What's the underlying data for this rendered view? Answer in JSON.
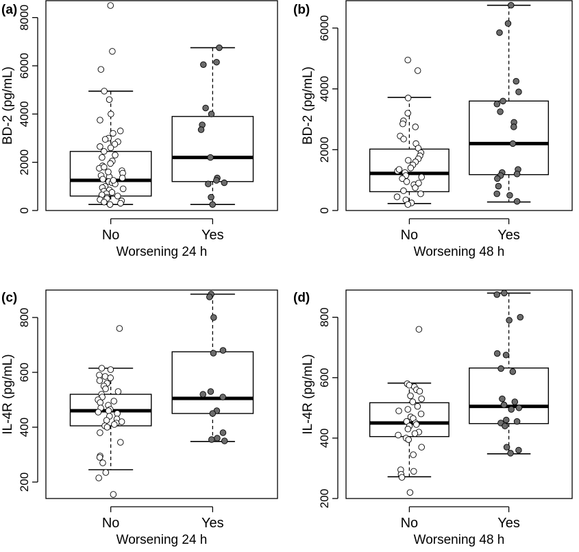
{
  "chart_data": [
    {
      "panel": "(a)",
      "type": "boxplot",
      "ylabel": "BD-2 (pg/mL)",
      "xlabel": "Worsening 24 h",
      "categories": [
        "No",
        "Yes"
      ],
      "yticks": [
        0,
        2000,
        4000,
        6000,
        8000
      ],
      "ylim": [
        0,
        8700
      ],
      "boxes": [
        {
          "whisker_low": 250,
          "q1": 600,
          "median": 1250,
          "q3": 2450,
          "whisker_high": 4950
        },
        {
          "whisker_low": 250,
          "q1": 1200,
          "median": 2200,
          "q3": 3900,
          "whisker_high": 6750
        }
      ],
      "points": [
        {
          "group": 0,
          "values": [
            8500,
            6600,
            5850,
            4950,
            4600,
            4000,
            3750,
            3300,
            3200,
            3000,
            2950,
            2850,
            2750,
            2650,
            2600,
            2450,
            2300,
            2200,
            2050,
            1950,
            1850,
            1750,
            1650,
            1550,
            1450,
            1400,
            1350,
            1300,
            1200,
            1150,
            1100,
            1000,
            950,
            900,
            850,
            800,
            750,
            700,
            650,
            600,
            550,
            500,
            450,
            400,
            350,
            300,
            250,
            1800,
            1250,
            1600
          ]
        },
        {
          "group": 1,
          "values": [
            6750,
            6150,
            6050,
            4250,
            4000,
            3550,
            3350,
            2200,
            1350,
            1250,
            1150,
            1100,
            550,
            250
          ]
        }
      ]
    },
    {
      "panel": "(b)",
      "type": "boxplot",
      "ylabel": "BD-2 (pg/mL)",
      "xlabel": "Worsening 48 h",
      "categories": [
        "No",
        "Yes"
      ],
      "yticks": [
        0,
        2000,
        4000,
        6000
      ],
      "ylim": [
        0,
        6900
      ],
      "boxes": [
        {
          "whisker_low": 230,
          "q1": 620,
          "median": 1220,
          "q3": 2020,
          "whisker_high": 3720
        },
        {
          "whisker_low": 280,
          "q1": 1180,
          "median": 2200,
          "q3": 3600,
          "whisker_high": 6750
        }
      ],
      "points": [
        {
          "group": 0,
          "values": [
            4950,
            4600,
            3700,
            3200,
            2950,
            2850,
            2750,
            2450,
            2350,
            2200,
            2050,
            1900,
            1800,
            1700,
            1600,
            1500,
            1400,
            1300,
            1250,
            1150,
            1050,
            950,
            850,
            750,
            650,
            550,
            450,
            350,
            250,
            200,
            1350,
            1100,
            1650,
            900
          ]
        },
        {
          "group": 1,
          "values": [
            6750,
            6150,
            5850,
            4250,
            3900,
            3600,
            3500,
            3250,
            2900,
            2750,
            2200,
            1350,
            1250,
            1200,
            1150,
            1050,
            800,
            550,
            500,
            300
          ]
        }
      ]
    },
    {
      "panel": "(c)",
      "type": "boxplot",
      "ylabel": "IL-4R (pg/mL)",
      "xlabel": "Worsening 24 h",
      "categories": [
        "No",
        "Yes"
      ],
      "yticks": [
        200,
        400,
        600,
        800
      ],
      "ylim": [
        140,
        900
      ],
      "boxes": [
        {
          "whisker_low": 245,
          "q1": 405,
          "median": 460,
          "q3": 520,
          "whisker_high": 615
        },
        {
          "whisker_low": 348,
          "q1": 450,
          "median": 505,
          "q3": 675,
          "whisker_high": 885
        }
      ],
      "points": [
        {
          "group": 0,
          "values": [
            760,
            615,
            610,
            590,
            585,
            580,
            570,
            560,
            550,
            540,
            530,
            520,
            510,
            500,
            495,
            490,
            480,
            470,
            465,
            460,
            455,
            450,
            440,
            430,
            425,
            420,
            415,
            410,
            405,
            400,
            380,
            345,
            295,
            290,
            270,
            235,
            215,
            155
          ]
        },
        {
          "group": 1,
          "values": [
            885,
            875,
            800,
            680,
            670,
            530,
            520,
            510,
            460,
            450,
            380,
            360,
            355,
            350
          ]
        }
      ]
    },
    {
      "panel": "(d)",
      "type": "boxplot",
      "ylabel": "IL-4R (pg/mL)",
      "xlabel": "Worsening 48 h",
      "categories": [
        "No",
        "Yes"
      ],
      "yticks": [
        200,
        400,
        600,
        800
      ],
      "ylim": [
        200,
        890
      ],
      "boxes": [
        {
          "whisker_low": 272,
          "q1": 405,
          "median": 450,
          "q3": 517,
          "whisker_high": 582
        },
        {
          "whisker_low": 348,
          "q1": 448,
          "median": 505,
          "q3": 632,
          "whisker_high": 880
        }
      ],
      "points": [
        {
          "group": 0,
          "values": [
            760,
            580,
            575,
            570,
            560,
            555,
            540,
            530,
            520,
            505,
            495,
            490,
            480,
            470,
            465,
            455,
            450,
            445,
            440,
            430,
            420,
            415,
            410,
            400,
            395,
            370,
            345,
            295,
            290,
            280,
            270,
            220
          ]
        },
        {
          "group": 1,
          "values": [
            880,
            875,
            800,
            790,
            680,
            675,
            630,
            620,
            530,
            520,
            510,
            500,
            495,
            460,
            455,
            450,
            440,
            370,
            360,
            350
          ]
        }
      ]
    }
  ]
}
